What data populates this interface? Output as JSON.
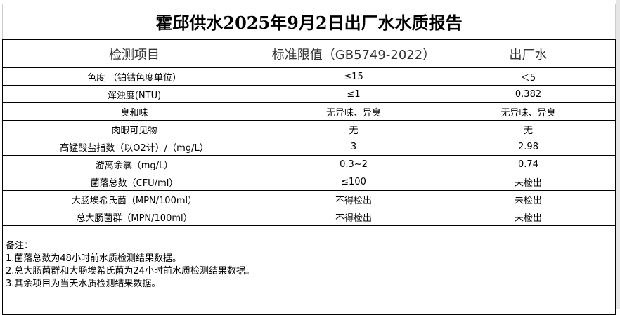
{
  "title": "霍邱供水2025年9月2日出厂水水质报告",
  "headers": [
    "检测项目",
    "标准限值（GB5749-2022）",
    "出厂水"
  ],
  "rows": [
    [
      "色度 （铂钴色度单位）",
      "≤15",
      "＜5"
    ],
    [
      "浑浊度(NTU)",
      "≤1",
      "0.382"
    ],
    [
      "臭和味",
      "无异味、异臭",
      "无异味、异臭"
    ],
    [
      "肉眼可见物",
      "无",
      "无"
    ],
    [
      "高锰酸盐指数（以O2计）/（mg/L）",
      "3",
      "2.98"
    ],
    [
      "游离余氯（mg/L）",
      "0.3~2",
      "0.74"
    ],
    [
      "菌落总数（CFU/ml）",
      "≤100",
      "未检出"
    ],
    [
      "大肠埃希氏菌（MPN/100ml）",
      "不得检出",
      "未检出"
    ],
    [
      "总大肠菌群（MPN/100ml）",
      "不得检出",
      "未检出"
    ]
  ],
  "notes": [
    "备注：",
    "1.菌落总数为48小时前水质检测结果数据。",
    "2.总大肠菌群和大肠埃希氏菌为24小时前水质检测结果数据。",
    "3.其余项目为当天水质检测结果数据。"
  ]
}
